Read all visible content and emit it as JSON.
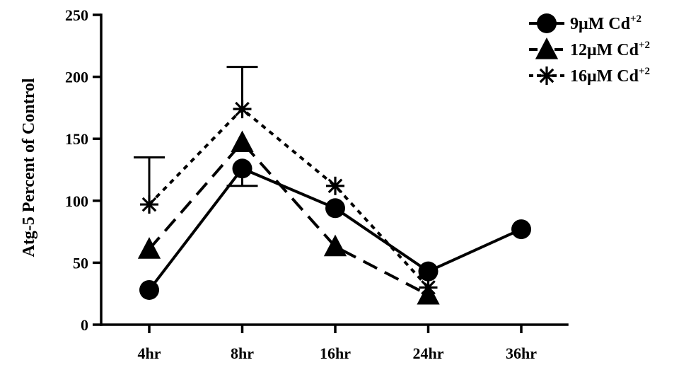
{
  "chart_data": {
    "type": "line",
    "categories": [
      "4hr",
      "8hr",
      "16hr",
      "24hr",
      "36hr"
    ],
    "ylabel": "Atg-5 Percent of Control",
    "xlabel": "",
    "ylim": [
      0,
      250
    ],
    "yticks": [
      0,
      50,
      100,
      150,
      200,
      250
    ],
    "grid": false,
    "legend_position": "top-right",
    "series": [
      {
        "name": "9μM Cd",
        "name_sup": "+2",
        "marker": "circle",
        "dash": "solid",
        "values": [
          28,
          126,
          94,
          43,
          77
        ],
        "error_up": [
          0,
          0,
          0,
          0,
          0
        ],
        "error_down": [
          0,
          14,
          0,
          0,
          0
        ]
      },
      {
        "name": "12μM Cd",
        "name_sup": "+2",
        "marker": "triangle",
        "dash": "dashed",
        "values": [
          61,
          147,
          63,
          24,
          null
        ],
        "error_up": [
          0,
          0,
          0,
          0,
          0
        ],
        "error_down": [
          0,
          0,
          0,
          0,
          0
        ]
      },
      {
        "name": "16μM Cd",
        "name_sup": "+2",
        "marker": "asterisk",
        "dash": "dotted",
        "values": [
          97,
          174,
          112,
          30,
          null
        ],
        "error_up": [
          38,
          34,
          0,
          0,
          0
        ],
        "error_down": [
          0,
          0,
          0,
          0,
          0
        ]
      }
    ]
  }
}
